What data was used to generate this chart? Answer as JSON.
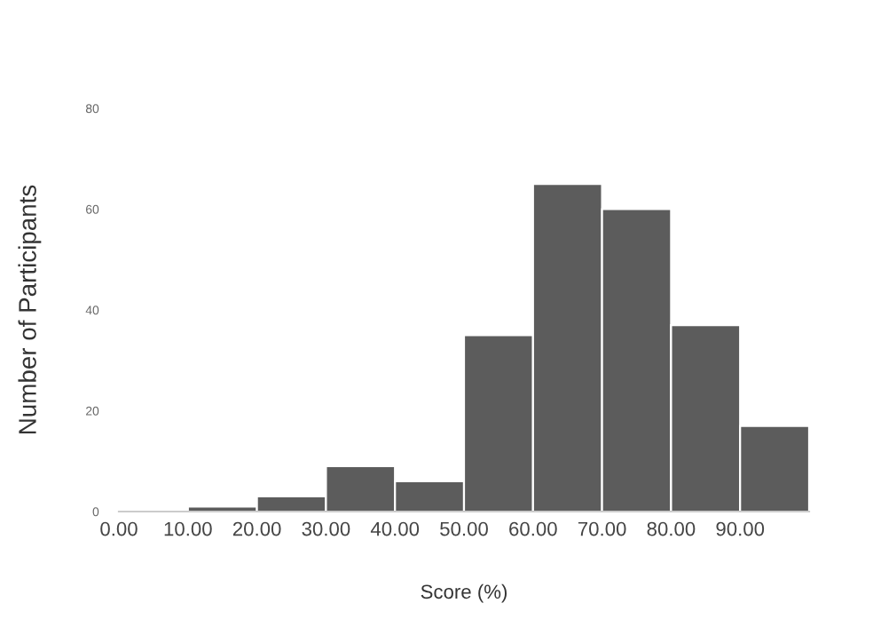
{
  "chart_data": {
    "type": "histogram",
    "xlabel": "Score (%)",
    "ylabel": "Number of Participants",
    "bins": [
      0,
      10,
      20,
      30,
      40,
      50,
      60,
      70,
      80,
      90,
      100
    ],
    "values": [
      0,
      1,
      3,
      9,
      6,
      35,
      65,
      60,
      37,
      17
    ],
    "color": "#5c5c5c",
    "xlim": [
      0,
      100
    ],
    "xticks": [
      {
        "value": 0,
        "label": "0.00"
      },
      {
        "value": 10,
        "label": "10.00"
      },
      {
        "value": 20,
        "label": "20.00"
      },
      {
        "value": 30,
        "label": "30.00"
      },
      {
        "value": 40,
        "label": "40.00"
      },
      {
        "value": 50,
        "label": "50.00"
      },
      {
        "value": 60,
        "label": "60.00"
      },
      {
        "value": 70,
        "label": "70.00"
      },
      {
        "value": 80,
        "label": "80.00"
      },
      {
        "value": 90,
        "label": "90.00"
      }
    ],
    "ylim": [
      0,
      80
    ],
    "yticks": [
      0,
      20,
      40,
      60,
      80
    ],
    "grid": false
  }
}
